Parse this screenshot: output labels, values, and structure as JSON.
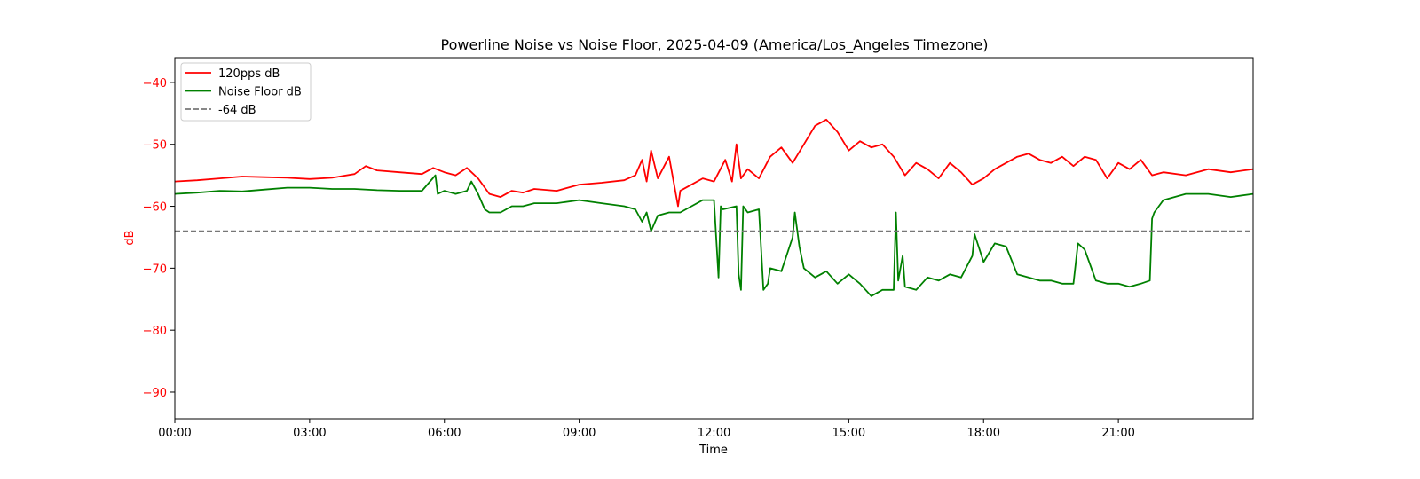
{
  "chart_data": {
    "type": "line",
    "title": "Powerline Noise vs Noise Floor, 2025-04-09 (America/Los_Angeles Timezone)",
    "xlabel": "Time",
    "ylabel": "dB",
    "xlim": [
      0,
      24
    ],
    "ylim": [
      -94.3,
      -36
    ],
    "x_unit": "hours",
    "x_ticks": [
      {
        "value": 0,
        "label": "00:00"
      },
      {
        "value": 3,
        "label": "03:00"
      },
      {
        "value": 6,
        "label": "06:00"
      },
      {
        "value": 9,
        "label": "09:00"
      },
      {
        "value": 12,
        "label": "12:00"
      },
      {
        "value": 15,
        "label": "15:00"
      },
      {
        "value": 18,
        "label": "18:00"
      },
      {
        "value": 21,
        "label": "21:00"
      }
    ],
    "y_ticks": [
      {
        "value": -40,
        "label": "−40"
      },
      {
        "value": -50,
        "label": "−50"
      },
      {
        "value": -60,
        "label": "−60"
      },
      {
        "value": -70,
        "label": "−70"
      },
      {
        "value": -80,
        "label": "−80"
      },
      {
        "value": -90,
        "label": "−90"
      }
    ],
    "ylabel_color": "#ff0000",
    "grid": false,
    "legend_position": "top-left",
    "series": [
      {
        "name": "120pps dB",
        "color": "#ff0000",
        "style": "solid",
        "x": [
          0,
          0.5,
          1.0,
          1.5,
          2.0,
          2.5,
          3.0,
          3.5,
          4.0,
          4.25,
          4.5,
          5.0,
          5.5,
          5.75,
          6.0,
          6.25,
          6.5,
          6.75,
          7.0,
          7.25,
          7.5,
          7.75,
          8.0,
          8.5,
          9.0,
          9.5,
          10.0,
          10.25,
          10.4,
          10.5,
          10.6,
          10.75,
          11.0,
          11.2,
          11.25,
          11.5,
          11.75,
          12.0,
          12.25,
          12.4,
          12.5,
          12.6,
          12.75,
          13.0,
          13.25,
          13.5,
          13.75,
          14.0,
          14.25,
          14.5,
          14.75,
          15.0,
          15.25,
          15.5,
          15.75,
          16.0,
          16.25,
          16.5,
          16.75,
          17.0,
          17.25,
          17.5,
          17.75,
          18.0,
          18.25,
          18.5,
          18.75,
          19.0,
          19.25,
          19.5,
          19.75,
          20.0,
          20.25,
          20.5,
          20.75,
          21.0,
          21.25,
          21.5,
          21.75,
          22.0,
          22.5,
          23.0,
          23.5,
          24.0
        ],
        "y": [
          -56.0,
          -55.8,
          -55.5,
          -55.2,
          -55.3,
          -55.4,
          -55.6,
          -55.4,
          -54.8,
          -53.5,
          -54.2,
          -54.5,
          -54.8,
          -53.8,
          -54.5,
          -55.0,
          -53.8,
          -55.5,
          -58.0,
          -58.5,
          -57.5,
          -57.8,
          -57.2,
          -57.5,
          -56.5,
          -56.2,
          -55.8,
          -55.0,
          -52.5,
          -56.0,
          -51.0,
          -55.5,
          -52.0,
          -60.0,
          -57.5,
          -56.5,
          -55.5,
          -56.0,
          -52.5,
          -56.0,
          -50.0,
          -55.5,
          -54.0,
          -55.5,
          -52.0,
          -50.5,
          -53.0,
          -50.0,
          -47.0,
          -46.0,
          -48.0,
          -51.0,
          -49.5,
          -50.5,
          -50.0,
          -52.0,
          -55.0,
          -53.0,
          -54.0,
          -55.5,
          -53.0,
          -54.5,
          -56.5,
          -55.5,
          -54.0,
          -53.0,
          -52.0,
          -51.5,
          -52.5,
          -53.0,
          -52.0,
          -53.5,
          -52.0,
          -52.5,
          -55.5,
          -53.0,
          -54.0,
          -52.5,
          -55.0,
          -54.5,
          -55.0,
          -54.0,
          -54.5,
          -54.0
        ]
      },
      {
        "name": "Noise Floor dB",
        "color": "#008000",
        "style": "solid",
        "x": [
          0,
          0.5,
          1.0,
          1.5,
          2.0,
          2.5,
          3.0,
          3.5,
          4.0,
          4.5,
          5.0,
          5.5,
          5.8,
          5.85,
          6.0,
          6.25,
          6.5,
          6.6,
          6.75,
          6.9,
          7.0,
          7.25,
          7.5,
          7.75,
          8.0,
          8.5,
          9.0,
          9.5,
          10.0,
          10.25,
          10.4,
          10.5,
          10.6,
          10.75,
          11.0,
          11.25,
          11.5,
          11.75,
          12.0,
          12.1,
          12.15,
          12.2,
          12.5,
          12.55,
          12.6,
          12.65,
          12.75,
          13.0,
          13.1,
          13.2,
          13.25,
          13.5,
          13.75,
          13.8,
          13.9,
          14.0,
          14.25,
          14.5,
          14.75,
          15.0,
          15.25,
          15.5,
          15.75,
          16.0,
          16.05,
          16.1,
          16.2,
          16.25,
          16.5,
          16.75,
          17.0,
          17.25,
          17.5,
          17.75,
          17.8,
          18.0,
          18.25,
          18.5,
          18.75,
          19.0,
          19.25,
          19.5,
          19.75,
          20.0,
          20.1,
          20.25,
          20.5,
          20.75,
          21.0,
          21.25,
          21.5,
          21.7,
          21.75,
          21.8,
          22.0,
          22.5,
          23.0,
          23.5,
          24.0
        ],
        "y": [
          -58.0,
          -57.8,
          -57.5,
          -57.6,
          -57.3,
          -57.0,
          -57.0,
          -57.2,
          -57.2,
          -57.4,
          -57.5,
          -57.5,
          -55.0,
          -58.0,
          -57.5,
          -58.0,
          -57.5,
          -56.0,
          -58.0,
          -60.5,
          -61.0,
          -61.0,
          -60.0,
          -60.0,
          -59.5,
          -59.5,
          -59.0,
          -59.5,
          -60.0,
          -60.5,
          -62.5,
          -61.0,
          -64.0,
          -61.5,
          -61.0,
          -61.0,
          -60.0,
          -59.0,
          -59.0,
          -71.5,
          -60.0,
          -60.5,
          -60.0,
          -71.0,
          -73.5,
          -60.0,
          -61.0,
          -60.5,
          -73.5,
          -72.5,
          -70.0,
          -70.5,
          -65.0,
          -61.0,
          -66.5,
          -70.0,
          -71.5,
          -70.5,
          -72.5,
          -71.0,
          -72.5,
          -74.5,
          -73.5,
          -73.5,
          -61.0,
          -72.0,
          -68.0,
          -73.0,
          -73.5,
          -71.5,
          -72.0,
          -71.0,
          -71.5,
          -68.0,
          -64.5,
          -69.0,
          -66.0,
          -66.5,
          -71.0,
          -71.5,
          -72.0,
          -72.0,
          -72.5,
          -72.5,
          -66.0,
          -67.0,
          -72.0,
          -72.5,
          -72.5,
          -73.0,
          -72.5,
          -72.0,
          -62.0,
          -61.0,
          -59.0,
          -58.0,
          -58.0,
          -58.5,
          -58.0
        ]
      },
      {
        "name": "-64 dB",
        "color": "#777777",
        "style": "dashed",
        "x": [
          0,
          24
        ],
        "y": [
          -64,
          -64
        ]
      }
    ]
  }
}
